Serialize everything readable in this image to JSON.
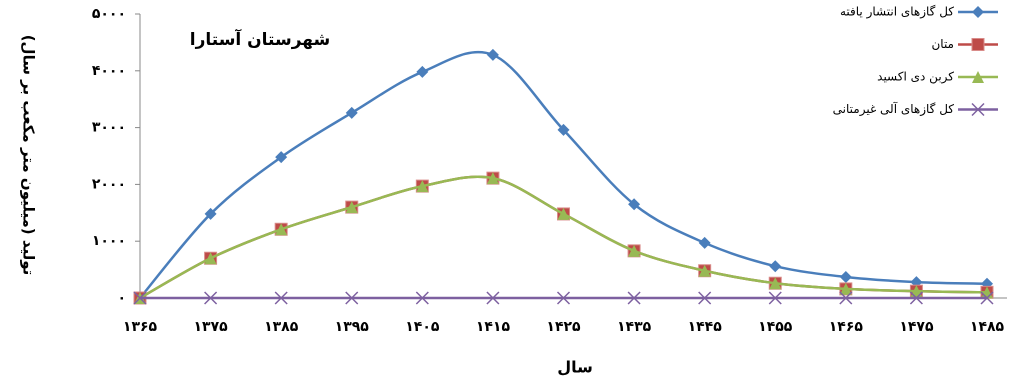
{
  "chart_data": {
    "type": "line",
    "title": "شهرستان آستارا",
    "x_label": "سال",
    "y_label": "تولید (میلیون متر مکعب بر سال)",
    "categories": [
      "۱۳۶۵",
      "۱۳۷۵",
      "۱۳۸۵",
      "۱۳۹۵",
      "۱۴۰۵",
      "۱۴۱۵",
      "۱۴۲۵",
      "۱۴۳۵",
      "۱۴۴۵",
      "۱۴۵۵",
      "۱۴۶۵",
      "۱۴۷۵",
      "۱۴۸۵"
    ],
    "ylim": [
      0,
      5000
    ],
    "yticks": [
      {
        "value": 0,
        "label": "۰"
      },
      {
        "value": 1000,
        "label": "۱۰۰۰"
      },
      {
        "value": 2000,
        "label": "۲۰۰۰"
      },
      {
        "value": 3000,
        "label": "۳۰۰۰"
      },
      {
        "value": 4000,
        "label": "۴۰۰۰"
      },
      {
        "value": 5000,
        "label": "۵۰۰۰"
      }
    ],
    "series": [
      {
        "name": "کل گازهای انتشار یافته",
        "color": "#4a7ebb",
        "marker": "diamond",
        "values": [
          0,
          1480,
          2480,
          3260,
          3980,
          4280,
          2960,
          1650,
          970,
          560,
          370,
          280,
          250
        ]
      },
      {
        "name": "متان",
        "color": "#be4b48",
        "marker": "square",
        "values": [
          0,
          700,
          1210,
          1600,
          1970,
          2110,
          1480,
          830,
          480,
          260,
          160,
          120,
          100
        ]
      },
      {
        "name": "کربن دی اکسید",
        "color": "#98b954",
        "marker": "triangle",
        "values": [
          0,
          700,
          1210,
          1600,
          1970,
          2110,
          1480,
          830,
          480,
          260,
          160,
          120,
          100
        ]
      },
      {
        "name": "کل گازهای آلی غیرمتانی",
        "color": "#7d60a0",
        "marker": "x",
        "values": [
          0,
          0,
          0,
          0,
          0,
          0,
          0,
          0,
          0,
          0,
          0,
          0,
          0
        ]
      }
    ]
  }
}
